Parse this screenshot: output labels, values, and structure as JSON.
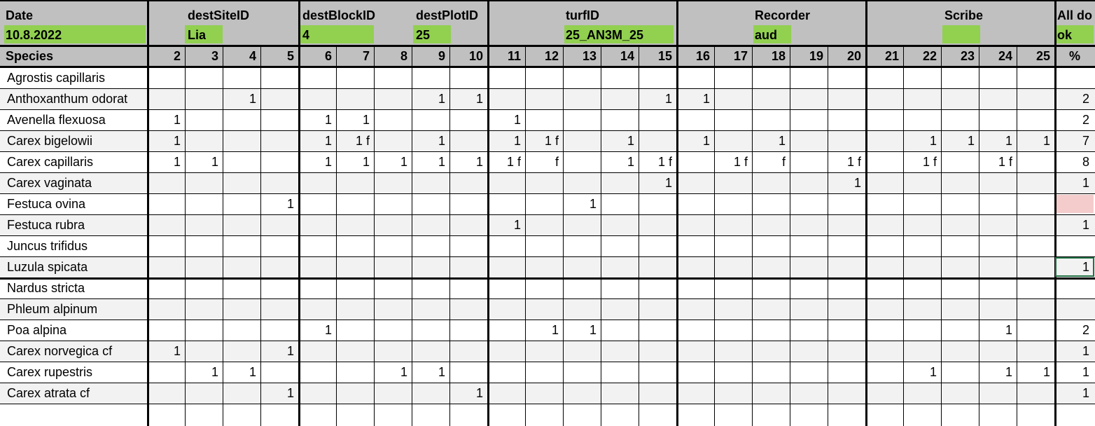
{
  "header": {
    "date_label": "Date",
    "date_value": "10.8.2022",
    "destSiteID_label": "destSiteID",
    "destSiteID_value": "Lia",
    "destBlockID_label": "destBlockID",
    "destBlockID_value": "4",
    "destPlotID_label": "destPlotID",
    "destPlotID_value": "25",
    "turfID_label": "turfID",
    "turfID_value": "25_AN3M_25",
    "recorder_label": "Recorder",
    "recorder_value": "aud",
    "scribe_label": "Scribe",
    "scribe_value": "",
    "alldone_label": "All do",
    "alldone_value": "ok"
  },
  "columns": {
    "species_label": "Species",
    "subplots": [
      "2",
      "3",
      "4",
      "5",
      "6",
      "7",
      "8",
      "9",
      "10",
      "11",
      "12",
      "13",
      "14",
      "15",
      "16",
      "17",
      "18",
      "19",
      "20",
      "21",
      "22",
      "23",
      "24",
      "25"
    ],
    "percent_label": "%"
  },
  "rows": [
    {
      "species": "Agrostis capillaris",
      "cells": [
        "",
        "",
        "",
        "",
        "",
        "",
        "",
        "",
        "",
        "",
        "",
        "",
        "",
        "",
        "",
        "",
        "",
        "",
        "",
        "",
        "",
        "",
        "",
        ""
      ],
      "percent": ""
    },
    {
      "species": "Anthoxanthum odorat",
      "cells": [
        "",
        "",
        "1",
        "",
        "",
        "",
        "",
        "1",
        "1",
        "",
        "",
        "",
        "",
        "1",
        "1",
        "",
        "",
        "",
        "",
        "",
        "",
        "",
        "",
        ""
      ],
      "percent": "2"
    },
    {
      "species": "Avenella flexuosa",
      "cells": [
        "1",
        "",
        "",
        "",
        "1",
        "1",
        "",
        "",
        "",
        "1",
        "",
        "",
        "",
        "",
        "",
        "",
        "",
        "",
        "",
        "",
        "",
        "",
        "",
        ""
      ],
      "percent": "2"
    },
    {
      "species": "Carex bigelowii",
      "cells": [
        "1",
        "",
        "",
        "",
        "1",
        "1 f",
        "",
        "1",
        "",
        "1",
        "1 f",
        "",
        "1",
        "",
        "1",
        "",
        "1",
        "",
        "",
        "",
        "1",
        "1",
        "1",
        "1"
      ],
      "percent": "7"
    },
    {
      "species": "Carex capillaris",
      "cells": [
        "1",
        "1",
        "",
        "",
        "1",
        "1",
        "1",
        "1",
        "1",
        "1 f",
        "f",
        "",
        "1",
        "1 f",
        "",
        "1 f",
        "f",
        "",
        "1 f",
        "",
        "1 f",
        "",
        "1 f",
        ""
      ],
      "percent": "8"
    },
    {
      "species": "Carex vaginata",
      "cells": [
        "",
        "",
        "",
        "",
        "",
        "",
        "",
        "",
        "",
        "",
        "",
        "",
        "",
        "1",
        "",
        "",
        "",
        "",
        "1",
        "",
        "",
        "",
        "",
        ""
      ],
      "percent": "1"
    },
    {
      "species": "Festuca ovina",
      "cells": [
        "",
        "",
        "",
        "1",
        "",
        "",
        "",
        "",
        "",
        "",
        "",
        "1",
        "",
        "",
        "",
        "",
        "",
        "",
        "",
        "",
        "",
        "",
        "",
        ""
      ],
      "percent": ""
    },
    {
      "species": "Festuca rubra",
      "cells": [
        "",
        "",
        "",
        "",
        "",
        "",
        "",
        "",
        "",
        "1",
        "",
        "",
        "",
        "",
        "",
        "",
        "",
        "",
        "",
        "",
        "",
        "",
        "",
        ""
      ],
      "percent": "1"
    },
    {
      "species": "Juncus trifidus",
      "cells": [
        "",
        "",
        "",
        "",
        "",
        "",
        "",
        "",
        "",
        "",
        "",
        "",
        "",
        "",
        "",
        "",
        "",
        "",
        "",
        "",
        "",
        "",
        "",
        ""
      ],
      "percent": ""
    },
    {
      "species": "Luzula spicata",
      "cells": [
        "",
        "",
        "",
        "",
        "",
        "",
        "",
        "",
        "",
        "",
        "",
        "",
        "",
        "",
        "",
        "",
        "",
        "",
        "",
        "",
        "",
        "",
        "",
        ""
      ],
      "percent": "1"
    },
    {
      "species": "Nardus stricta",
      "cells": [
        "",
        "",
        "",
        "",
        "",
        "",
        "",
        "",
        "",
        "",
        "",
        "",
        "",
        "",
        "",
        "",
        "",
        "",
        "",
        "",
        "",
        "",
        "",
        ""
      ],
      "percent": ""
    },
    {
      "species": "Phleum alpinum",
      "cells": [
        "",
        "",
        "",
        "",
        "",
        "",
        "",
        "",
        "",
        "",
        "",
        "",
        "",
        "",
        "",
        "",
        "",
        "",
        "",
        "",
        "",
        "",
        "",
        ""
      ],
      "percent": ""
    },
    {
      "species": "Poa alpina",
      "cells": [
        "",
        "",
        "",
        "",
        "1",
        "",
        "",
        "",
        "",
        "",
        "1",
        "1",
        "",
        "",
        "",
        "",
        "",
        "",
        "",
        "",
        "",
        "",
        "1",
        ""
      ],
      "percent": "2"
    },
    {
      "species": "Carex norvegica cf",
      "cells": [
        "1",
        "",
        "",
        "1",
        "",
        "",
        "",
        "",
        "",
        "",
        "",
        "",
        "",
        "",
        "",
        "",
        "",
        "",
        "",
        "",
        "",
        "",
        "",
        ""
      ],
      "percent": "1"
    },
    {
      "species": "Carex rupestris",
      "cells": [
        "",
        "1",
        "1",
        "",
        "",
        "",
        "1",
        "1",
        "",
        "",
        "",
        "",
        "",
        "",
        "",
        "",
        "",
        "",
        "",
        "",
        "1",
        "",
        "1",
        "1"
      ],
      "percent": "1"
    },
    {
      "species": "Carex atrata cf",
      "cells": [
        "",
        "",
        "",
        "1",
        "",
        "",
        "",
        "",
        "1",
        "",
        "",
        "",
        "",
        "",
        "",
        "",
        "",
        "",
        "",
        "",
        "",
        "",
        "",
        ""
      ],
      "percent": "1"
    }
  ],
  "colors": {
    "header_bg": "#c0c0c0",
    "header_value_green": "#92d050",
    "stripe": "#f2f2f2",
    "pink": "#f4cccc",
    "selection_border": "#217346"
  }
}
